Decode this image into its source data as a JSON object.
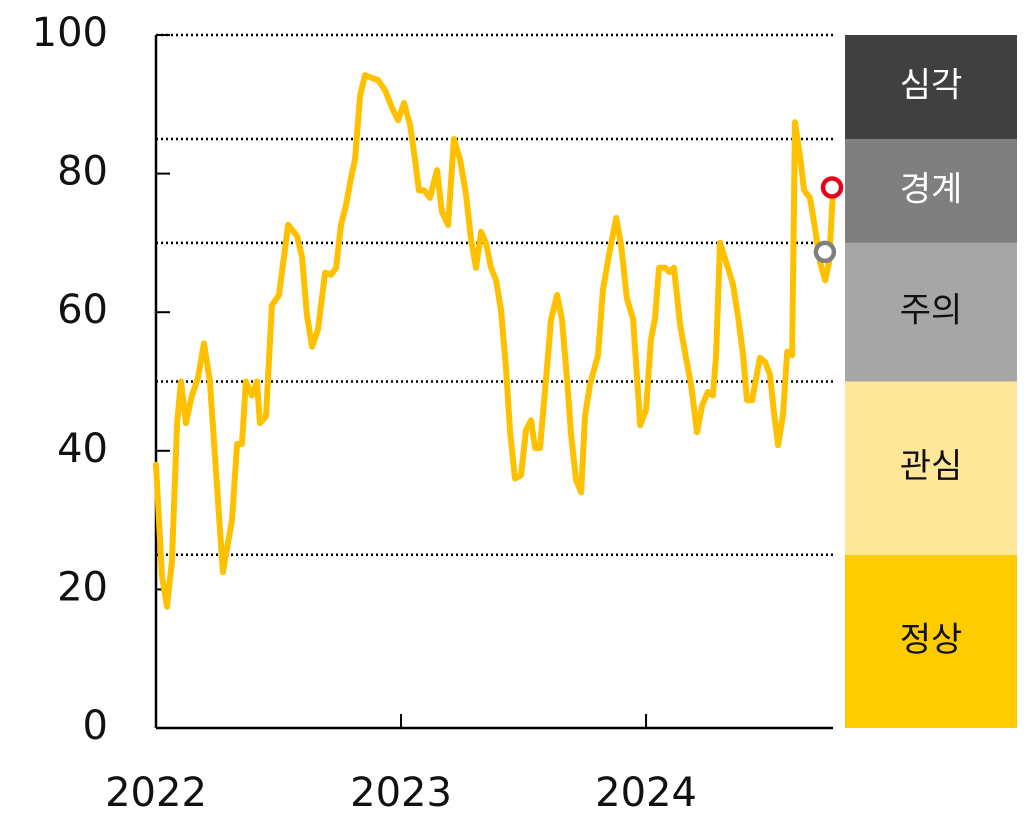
{
  "chart_data": {
    "type": "line",
    "xlim": [
      2022,
      2024.763
    ],
    "xticks": [
      2022,
      2023,
      2024
    ],
    "ylim": [
      0,
      100
    ],
    "yticks": [
      0,
      20,
      40,
      60,
      80,
      100
    ],
    "series": [
      {
        "color": "#ffc000",
        "x": [
          2022.0,
          2022.024,
          2022.045,
          2022.065,
          2022.086,
          2022.102,
          2022.122,
          2022.147,
          2022.171,
          2022.196,
          2022.22,
          2022.245,
          2022.273,
          2022.31,
          2022.331,
          2022.351,
          2022.367,
          2022.392,
          2022.412,
          2022.424,
          2022.449,
          2022.473,
          2022.502,
          2022.539,
          2022.576,
          2022.596,
          2022.616,
          2022.637,
          2022.661,
          2022.69,
          2022.714,
          2022.735,
          2022.755,
          2022.776,
          2022.796,
          2022.812,
          2022.833,
          2022.853,
          2022.882,
          2022.906,
          2022.935,
          2022.963,
          2022.988,
          2023.012,
          2023.037,
          2023.057,
          2023.073,
          2023.094,
          2023.118,
          2023.147,
          2023.167,
          2023.192,
          2023.216,
          2023.241,
          2023.265,
          2023.286,
          2023.306,
          2023.327,
          2023.347,
          2023.367,
          2023.388,
          2023.408,
          2023.429,
          2023.445,
          2023.465,
          2023.49,
          2023.51,
          2023.531,
          2023.547,
          2023.567,
          2023.588,
          2023.612,
          2023.637,
          2023.657,
          2023.678,
          2023.694,
          2023.714,
          2023.735,
          2023.751,
          2023.771,
          2023.804,
          2023.824,
          2023.849,
          2023.878,
          2023.898,
          2023.922,
          2023.947,
          2023.976,
          2024.0,
          2024.02,
          2024.037,
          2024.053,
          2024.078,
          2024.094,
          2024.114,
          2024.139,
          2024.163,
          2024.184,
          2024.208,
          2024.229,
          2024.253,
          2024.273,
          2024.286,
          2024.302,
          2024.331,
          2024.355,
          2024.376,
          2024.396,
          2024.412,
          2024.433,
          2024.449,
          2024.465,
          2024.486,
          2024.506,
          2024.522,
          2024.539,
          2024.559,
          2024.576,
          2024.596,
          2024.608,
          2024.629,
          2024.645,
          2024.669,
          2024.694,
          2024.71,
          2024.731,
          2024.747,
          2024.763
        ],
        "values": [
          38,
          22,
          17.5,
          24,
          44,
          50,
          44,
          48,
          50.5,
          55.5,
          50,
          37,
          22.5,
          30,
          41,
          41,
          50,
          48,
          50,
          44,
          45,
          61,
          62.5,
          72.6,
          71,
          68,
          59.6,
          55,
          57.5,
          65.7,
          65.4,
          66.4,
          72.6,
          75.5,
          79.4,
          82,
          91.3,
          94.2,
          93.8,
          93.5,
          92,
          89.5,
          87.7,
          90.2,
          87,
          82,
          77.6,
          77.6,
          76.5,
          80.5,
          74.5,
          72.6,
          85,
          82,
          77,
          70.4,
          66.4,
          71.6,
          70,
          66.5,
          64.6,
          60.3,
          51.7,
          42.7,
          36,
          36.5,
          43,
          44.4,
          40.4,
          40.4,
          48.8,
          58.9,
          62.5,
          58.9,
          50.2,
          42.3,
          35.8,
          34,
          45,
          49.5,
          53.8,
          63.2,
          68.3,
          73.6,
          69.7,
          62,
          59,
          43.7,
          45.9,
          56,
          59.2,
          66.4,
          66.4,
          65.8,
          66.4,
          58.2,
          53.4,
          49.5,
          42.7,
          46.6,
          48.5,
          48,
          53.8,
          70,
          66.8,
          64,
          59.2,
          53.8,
          47.3,
          47.3,
          50.5,
          53.4,
          52.8,
          51,
          45.6,
          40.8,
          45.2,
          54.3,
          53.8,
          87.4,
          82.3,
          77.6,
          76.5,
          71.1,
          67.2,
          64.6,
          67.2,
          77.6
        ]
      }
    ],
    "markers": [
      {
        "x": 2024.759,
        "y": 78,
        "color": "#e8001c"
      },
      {
        "x": 2024.73,
        "y": 68.7,
        "color": "#7f7f7f"
      }
    ],
    "bands": [
      {
        "label": "정상",
        "from": 0,
        "to": 25,
        "color": "#ffcc00",
        "text_color": "#111111"
      },
      {
        "label": "관심",
        "from": 25,
        "to": 50,
        "color": "#ffe799",
        "text_color": "#111111"
      },
      {
        "label": "주의",
        "from": 50,
        "to": 70,
        "color": "#a6a6a6",
        "text_color": "#111111"
      },
      {
        "label": "경계",
        "from": 70,
        "to": 85,
        "color": "#7f7f7f",
        "text_color": "#ffffff"
      },
      {
        "label": "심각",
        "from": 85,
        "to": 100,
        "color": "#404040",
        "text_color": "#ffffff"
      }
    ]
  }
}
